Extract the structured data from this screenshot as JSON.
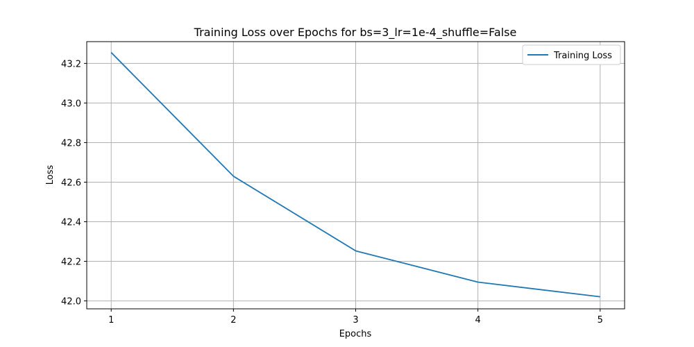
{
  "chart_data": {
    "type": "line",
    "title": "Training Loss over Epochs for bs=3_lr=1e-4_shuffle=False",
    "xlabel": "Epochs",
    "ylabel": "Loss",
    "x": [
      1,
      2,
      3,
      4,
      5
    ],
    "xticks": [
      "1",
      "2",
      "3",
      "4",
      "5"
    ],
    "yticks": [
      "42.0",
      "42.2",
      "42.4",
      "42.6",
      "42.8",
      "43.0",
      "43.2"
    ],
    "xlim": [
      0.8,
      5.2
    ],
    "ylim": [
      41.96,
      43.31
    ],
    "grid": true,
    "legend_position": "top-right",
    "series": [
      {
        "name": "Training Loss",
        "color": "#1f77b4",
        "values": [
          43.255,
          42.63,
          42.253,
          42.095,
          42.021
        ]
      }
    ]
  }
}
